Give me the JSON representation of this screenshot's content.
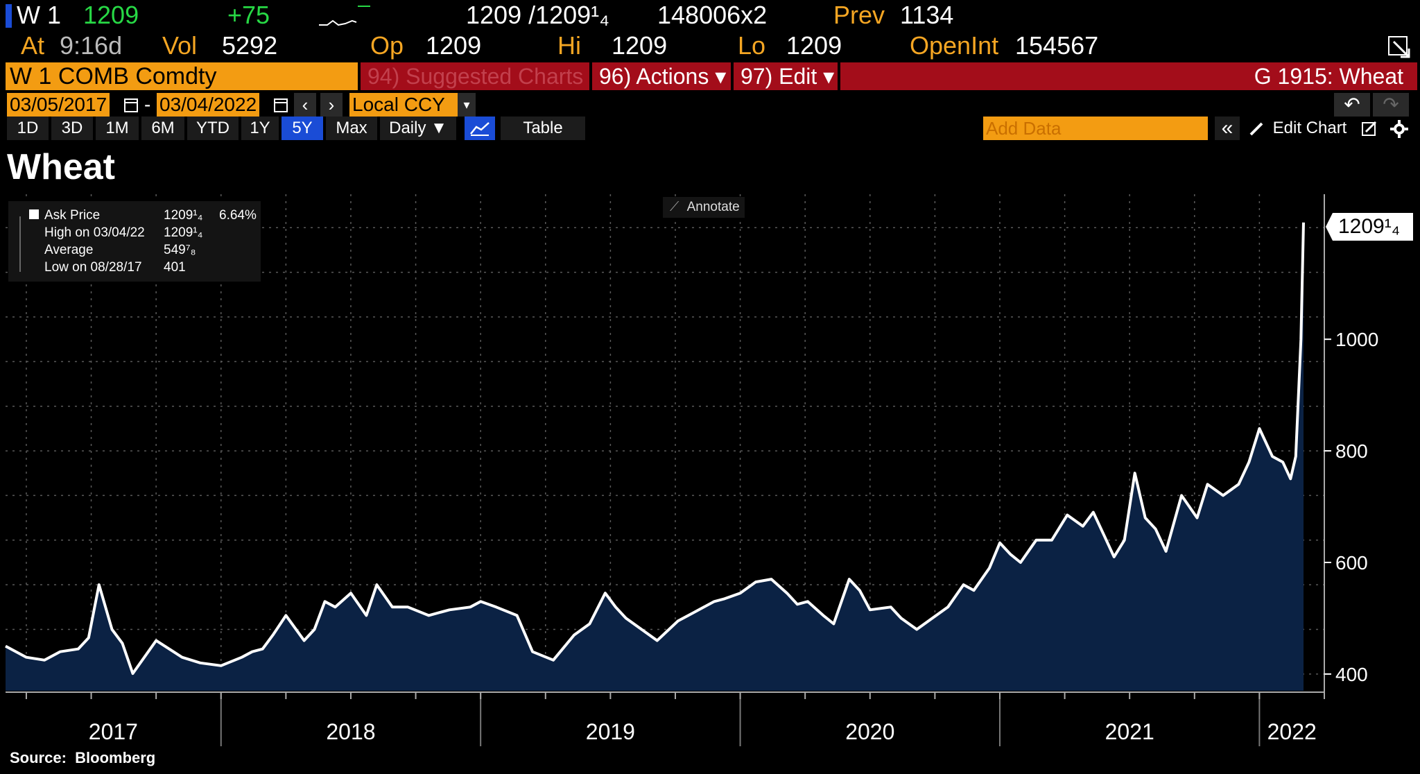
{
  "quote": {
    "ticker": "W 1",
    "last": "1209",
    "change": "+75",
    "bid_ask": "1209 /1209¹₄",
    "size": "148006x2",
    "prev_label": "Prev",
    "prev": "1134",
    "at_label": "At",
    "time": "9:16d",
    "vol_label": "Vol",
    "vol": "5292",
    "op_label": "Op",
    "op": "1209",
    "hi_label": "Hi",
    "hi": "1209",
    "lo_label": "Lo",
    "lo": "1209",
    "oi_label": "OpenInt",
    "oi": "154567"
  },
  "command_bar": {
    "security": "W 1 COMB Comdty",
    "suggested": "94) Suggested Charts",
    "actions": "96) Actions ▾",
    "edit": "97) Edit ▾",
    "function": "G 1915: Wheat"
  },
  "date_bar": {
    "start": "03/05/2017",
    "end": "03/04/2022",
    "currency": "Local CCY"
  },
  "toolbar": {
    "periods": [
      "1D",
      "3D",
      "1M",
      "6M",
      "YTD",
      "1Y",
      "5Y",
      "Max"
    ],
    "active_period": "5Y",
    "frequency": "Daily ▼",
    "table": "Table",
    "add_data_placeholder": "Add Data",
    "edit_chart": "Edit Chart"
  },
  "legend": {
    "rows": [
      {
        "label": "Ask Price",
        "value": "1209¹₄",
        "extra": "6.64%"
      },
      {
        "label": "High on 03/04/22",
        "value": "1209¹₄",
        "extra": ""
      },
      {
        "label": "Average",
        "value": "549⁷₈",
        "extra": ""
      },
      {
        "label": "Low on 08/28/17",
        "value": "401",
        "extra": ""
      }
    ]
  },
  "annotate_label": "Annotate",
  "source": "Source:  Bloomberg",
  "colors": {
    "accent_orange": "#f39c12",
    "command_red": "#a30d1a",
    "area_fill": "#0b2244",
    "line": "#ffffff",
    "positive": "#27d845"
  },
  "chart_data": {
    "type": "area",
    "title": "Wheat",
    "series": [
      {
        "name": "Ask Price",
        "x": [
          2017.17,
          2017.25,
          2017.32,
          2017.38,
          2017.45,
          2017.49,
          2017.53,
          2017.58,
          2017.62,
          2017.66,
          2017.75,
          2017.85,
          2017.92,
          2018.0,
          2018.08,
          2018.12,
          2018.16,
          2018.2,
          2018.25,
          2018.32,
          2018.36,
          2018.4,
          2018.44,
          2018.5,
          2018.56,
          2018.6,
          2018.66,
          2018.72,
          2018.8,
          2018.88,
          2018.96,
          2019.0,
          2019.06,
          2019.14,
          2019.2,
          2019.28,
          2019.36,
          2019.42,
          2019.48,
          2019.52,
          2019.56,
          2019.62,
          2019.68,
          2019.76,
          2019.82,
          2019.86,
          2019.9,
          2019.94,
          2020.0,
          2020.06,
          2020.12,
          2020.18,
          2020.22,
          2020.26,
          2020.32,
          2020.36,
          2020.42,
          2020.46,
          2020.5,
          2020.58,
          2020.62,
          2020.68,
          2020.74,
          2020.8,
          2020.86,
          2020.9,
          2020.96,
          2021.0,
          2021.04,
          2021.08,
          2021.14,
          2021.2,
          2021.26,
          2021.32,
          2021.36,
          2021.4,
          2021.44,
          2021.48,
          2021.52,
          2021.56,
          2021.6,
          2021.64,
          2021.7,
          2021.76,
          2021.8,
          2021.86,
          2021.92,
          2021.96,
          2022.0,
          2022.05,
          2022.09,
          2022.12,
          2022.14,
          2022.16,
          2022.17
        ],
        "values": [
          450,
          430,
          425,
          440,
          445,
          465,
          560,
          480,
          455,
          401,
          460,
          430,
          420,
          415,
          430,
          440,
          445,
          470,
          505,
          460,
          480,
          530,
          520,
          545,
          505,
          560,
          520,
          520,
          505,
          515,
          520,
          530,
          520,
          505,
          440,
          425,
          470,
          490,
          545,
          520,
          500,
          480,
          460,
          495,
          510,
          520,
          530,
          535,
          545,
          565,
          570,
          545,
          525,
          530,
          505,
          490,
          570,
          550,
          515,
          520,
          500,
          480,
          500,
          520,
          560,
          550,
          590,
          635,
          615,
          600,
          640,
          640,
          685,
          665,
          690,
          650,
          610,
          640,
          760,
          680,
          660,
          620,
          720,
          680,
          740,
          720,
          740,
          780,
          840,
          790,
          780,
          750,
          790,
          1000,
          1209.25
        ]
      }
    ],
    "xlabel": "",
    "ylabel": "",
    "xlim": [
      2017.17,
      2022.25
    ],
    "ylim": [
      370,
      1260
    ],
    "x_ticks": [
      "2017",
      "2018",
      "2019",
      "2020",
      "2021",
      "2022"
    ],
    "y_ticks": [
      400,
      600,
      800,
      1000
    ],
    "last_value_label": "1209¹₄",
    "grid": true,
    "legend_position": "top-left"
  }
}
